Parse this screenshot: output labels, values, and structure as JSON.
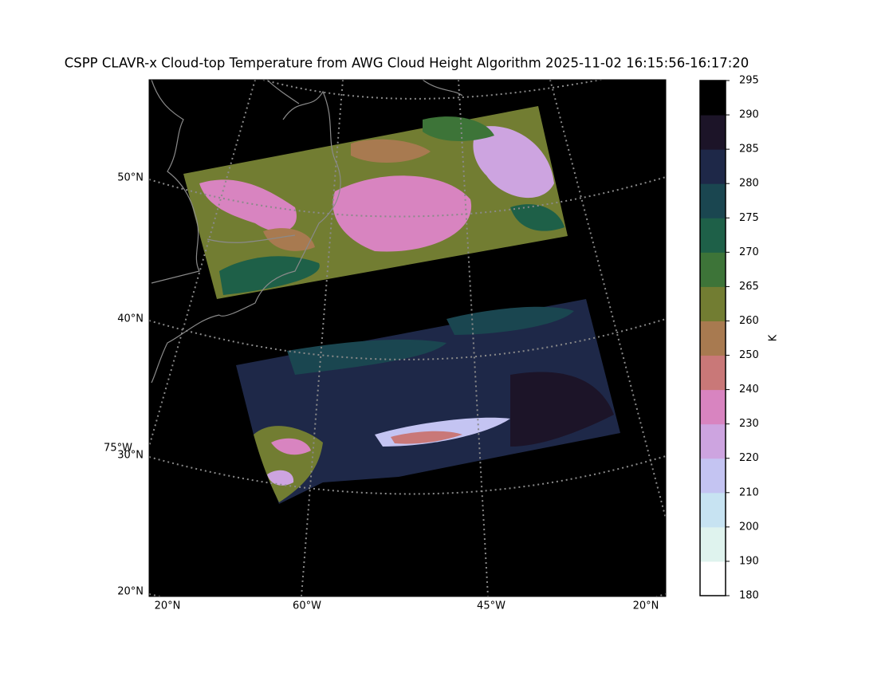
{
  "title": "CSPP CLAVR-x Cloud-top Temperature from AWG Cloud Height Algorithm 2025-11-02 16:15:56-16:17:20",
  "map": {
    "lat_labels": [
      "50°N",
      "40°N",
      "30°N",
      "20°N"
    ],
    "lon_labels": [
      "20°N",
      "60°W",
      "45°W",
      "20°N"
    ],
    "extra_label": "75°W"
  },
  "colorbar": {
    "label": "K",
    "ticks": [
      180,
      190,
      200,
      210,
      220,
      230,
      240,
      250,
      260,
      265,
      270,
      275,
      280,
      285,
      290,
      295
    ],
    "colors": [
      "#ffffff",
      "#dff3ee",
      "#c7e3f2",
      "#c4c4f2",
      "#cda4e0",
      "#d884c0",
      "#c97878",
      "#a87a50",
      "#727d32",
      "#3d7438",
      "#1e6048",
      "#1a4650",
      "#1e2848",
      "#1c1428",
      "#000000"
    ]
  }
}
